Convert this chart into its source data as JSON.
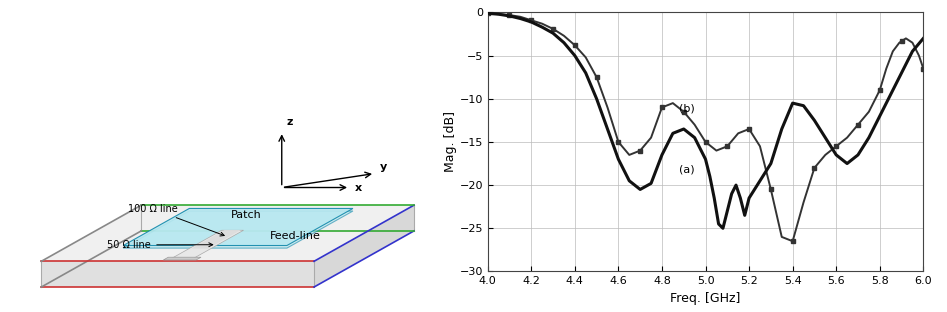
{
  "xlabel": "Freq. [GHz]",
  "ylabel": "Mag. [dB]",
  "xlim": [
    4.0,
    6.0
  ],
  "ylim": [
    -30,
    0
  ],
  "xticks": [
    4.0,
    4.2,
    4.4,
    4.6,
    4.8,
    5.0,
    5.2,
    5.4,
    5.6,
    5.8,
    6.0
  ],
  "yticks": [
    0,
    -5,
    -10,
    -15,
    -20,
    -25,
    -30
  ],
  "label_a": "(a)",
  "label_b": "(b)",
  "curve_a_x": [
    4.0,
    4.05,
    4.1,
    4.15,
    4.2,
    4.25,
    4.3,
    4.35,
    4.4,
    4.45,
    4.5,
    4.55,
    4.6,
    4.65,
    4.7,
    4.75,
    4.8,
    4.85,
    4.9,
    4.95,
    5.0,
    5.02,
    5.04,
    5.06,
    5.08,
    5.1,
    5.12,
    5.14,
    5.16,
    5.18,
    5.2,
    5.25,
    5.3,
    5.35,
    5.4,
    5.45,
    5.5,
    5.55,
    5.6,
    5.65,
    5.7,
    5.75,
    5.8,
    5.85,
    5.9,
    5.95,
    6.0
  ],
  "curve_a_y": [
    -0.1,
    -0.2,
    -0.4,
    -0.7,
    -1.1,
    -1.7,
    -2.4,
    -3.5,
    -5.0,
    -7.0,
    -10.0,
    -13.5,
    -17.0,
    -19.5,
    -20.5,
    -19.8,
    -16.5,
    -14.0,
    -13.5,
    -14.5,
    -17.0,
    -19.0,
    -21.5,
    -24.5,
    -25.0,
    -23.0,
    -21.0,
    -20.0,
    -21.5,
    -23.5,
    -21.5,
    -19.5,
    -17.5,
    -13.5,
    -10.5,
    -10.8,
    -12.5,
    -14.5,
    -16.5,
    -17.5,
    -16.5,
    -14.5,
    -12.0,
    -9.5,
    -7.0,
    -4.5,
    -3.0
  ],
  "curve_b_x": [
    4.0,
    4.05,
    4.1,
    4.15,
    4.2,
    4.25,
    4.3,
    4.35,
    4.4,
    4.45,
    4.5,
    4.55,
    4.6,
    4.65,
    4.7,
    4.75,
    4.8,
    4.85,
    4.9,
    4.95,
    5.0,
    5.05,
    5.1,
    5.15,
    5.2,
    5.25,
    5.3,
    5.35,
    5.4,
    5.45,
    5.5,
    5.55,
    5.6,
    5.65,
    5.7,
    5.75,
    5.8,
    5.83,
    5.86,
    5.89,
    5.92,
    5.95,
    5.98,
    6.0
  ],
  "curve_b_y": [
    -0.1,
    -0.2,
    -0.3,
    -0.5,
    -0.9,
    -1.3,
    -1.9,
    -2.7,
    -3.8,
    -5.2,
    -7.5,
    -11.0,
    -15.0,
    -16.5,
    -16.0,
    -14.5,
    -11.0,
    -10.5,
    -11.5,
    -13.0,
    -15.0,
    -16.0,
    -15.5,
    -14.0,
    -13.5,
    -15.5,
    -20.5,
    -26.0,
    -26.5,
    -22.0,
    -18.0,
    -16.5,
    -15.5,
    -14.5,
    -13.0,
    -11.5,
    -9.0,
    -6.5,
    -4.5,
    -3.5,
    -3.0,
    -3.5,
    -5.0,
    -6.5
  ],
  "diag_bg": "#f5f5f5",
  "diag_edge_colors": [
    "#cc3333",
    "#3333cc",
    "#33aa33",
    "#888888"
  ],
  "patch_fc": "#b8e8f0",
  "patch_ec": "#1188aa"
}
